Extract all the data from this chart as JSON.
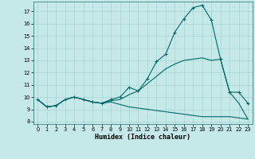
{
  "title": "",
  "xlabel": "Humidex (Indice chaleur)",
  "bg_color": "#c5e8e8",
  "line_color": "#006868",
  "xlim": [
    -0.5,
    23.5
  ],
  "ylim": [
    7.8,
    17.8
  ],
  "yticks": [
    8,
    9,
    10,
    11,
    12,
    13,
    14,
    15,
    16,
    17
  ],
  "xticks": [
    0,
    1,
    2,
    3,
    4,
    5,
    6,
    7,
    8,
    9,
    10,
    11,
    12,
    13,
    14,
    15,
    16,
    17,
    18,
    19,
    20,
    21,
    22,
    23
  ],
  "grid_color": "#a8d4d4",
  "lines": [
    {
      "x": [
        0,
        1,
        2,
        3,
        4,
        5,
        6,
        7,
        8,
        9,
        10,
        11,
        12,
        13,
        14,
        15,
        16,
        17,
        18,
        19,
        20,
        21,
        22,
        23
      ],
      "y": [
        9.8,
        9.2,
        9.3,
        9.8,
        10.0,
        9.8,
        9.6,
        9.5,
        9.8,
        10.0,
        10.8,
        10.5,
        11.5,
        12.9,
        13.5,
        15.3,
        16.4,
        17.3,
        17.5,
        16.3,
        13.1,
        10.4,
        10.4,
        9.5
      ],
      "marker": true
    },
    {
      "x": [
        0,
        1,
        2,
        3,
        4,
        5,
        6,
        7,
        8,
        9,
        10,
        11,
        12,
        13,
        14,
        15,
        16,
        17,
        18,
        19,
        20,
        21,
        22,
        23
      ],
      "y": [
        9.8,
        9.2,
        9.3,
        9.8,
        10.0,
        9.8,
        9.6,
        9.5,
        9.7,
        9.8,
        10.2,
        10.5,
        11.1,
        11.7,
        12.3,
        12.7,
        13.0,
        13.1,
        13.2,
        13.0,
        13.1,
        10.4,
        9.5,
        8.2
      ],
      "marker": false
    },
    {
      "x": [
        0,
        1,
        2,
        3,
        4,
        5,
        6,
        7,
        8,
        9,
        10,
        11,
        12,
        13,
        14,
        15,
        16,
        17,
        18,
        19,
        20,
        21,
        22,
        23
      ],
      "y": [
        9.8,
        9.2,
        9.3,
        9.8,
        10.0,
        9.8,
        9.6,
        9.5,
        9.6,
        9.4,
        9.2,
        9.1,
        9.0,
        8.9,
        8.8,
        8.7,
        8.6,
        8.5,
        8.4,
        8.4,
        8.4,
        8.4,
        8.3,
        8.2
      ],
      "marker": false
    }
  ]
}
